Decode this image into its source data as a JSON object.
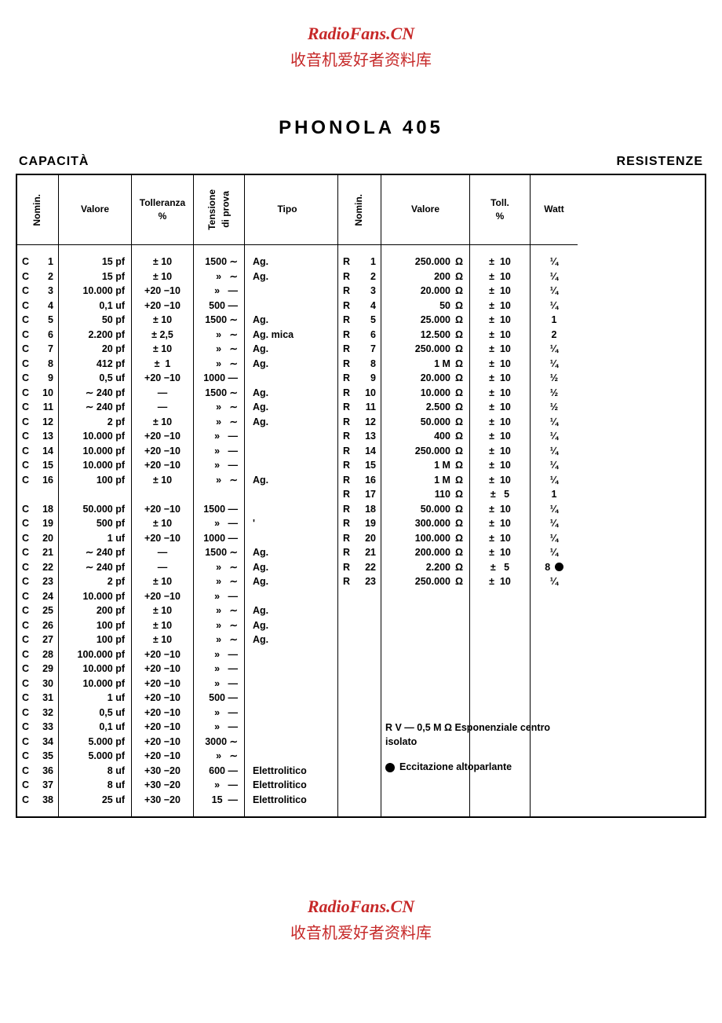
{
  "watermark": {
    "line1": "RadioFans.CN",
    "line2": "收音机爱好者资料库"
  },
  "title": "PHONOLA  405",
  "labels": {
    "left": "CAPACITÀ",
    "right": "RESISTENZE"
  },
  "cap_headers": {
    "nomin": "Nomin.",
    "valore": "Valore",
    "toll": "Tolleranza\n%",
    "tens": "Tensione\ndi prova",
    "tipo": "Tipo"
  },
  "res_headers": {
    "nomin": "Nomin.",
    "valore": "Valore",
    "toll": "Toll.\n%",
    "watt": "Watt"
  },
  "capacitors": [
    {
      "n": "C",
      "i": "1",
      "val": "15 pf",
      "tol": "± 10",
      "tens": "1500 ∼",
      "tipo": "Ag."
    },
    {
      "n": "C",
      "i": "2",
      "val": "15 pf",
      "tol": "± 10",
      "tens": "»   ∼",
      "tipo": "Ag."
    },
    {
      "n": "C",
      "i": "3",
      "val": "10.000 pf",
      "tol": "+20 −10",
      "tens": "»   —",
      "tipo": ""
    },
    {
      "n": "C",
      "i": "4",
      "val": "0,1 uf",
      "tol": "+20 −10",
      "tens": "500 —",
      "tipo": ""
    },
    {
      "n": "C",
      "i": "5",
      "val": "50 pf",
      "tol": "± 10",
      "tens": "1500 ∼",
      "tipo": "Ag."
    },
    {
      "n": "C",
      "i": "6",
      "val": "2.200 pf",
      "tol": "± 2,5",
      "tens": "»   ∼",
      "tipo": "Ag. mica"
    },
    {
      "n": "C",
      "i": "7",
      "val": "20 pf",
      "tol": "± 10",
      "tens": "»   ∼",
      "tipo": "Ag."
    },
    {
      "n": "C",
      "i": "8",
      "val": "412 pf",
      "tol": "±  1",
      "tens": "»   ∼",
      "tipo": "Ag."
    },
    {
      "n": "C",
      "i": "9",
      "val": "0,5 uf",
      "tol": "+20 −10",
      "tens": "1000 —",
      "tipo": ""
    },
    {
      "n": "C",
      "i": "10",
      "val": "∼ 240 pf",
      "tol": "—",
      "tens": "1500 ∼",
      "tipo": "Ag."
    },
    {
      "n": "C",
      "i": "11",
      "val": "∼ 240 pf",
      "tol": "—",
      "tens": "»   ∼",
      "tipo": "Ag."
    },
    {
      "n": "C",
      "i": "12",
      "val": "2 pf",
      "tol": "± 10",
      "tens": "»   ∼",
      "tipo": "Ag."
    },
    {
      "n": "C",
      "i": "13",
      "val": "10.000 pf",
      "tol": "+20 −10",
      "tens": "»   —",
      "tipo": ""
    },
    {
      "n": "C",
      "i": "14",
      "val": "10.000 pf",
      "tol": "+20 −10",
      "tens": "»   —",
      "tipo": ""
    },
    {
      "n": "C",
      "i": "15",
      "val": "10.000 pf",
      "tol": "+20 −10",
      "tens": "»   —",
      "tipo": ""
    },
    {
      "n": "C",
      "i": "16",
      "val": "100 pf",
      "tol": "± 10",
      "tens": "»   ∼",
      "tipo": "Ag."
    },
    {
      "gap": true
    },
    {
      "n": "C",
      "i": "18",
      "val": "50.000 pf",
      "tol": "+20 −10",
      "tens": "1500 —",
      "tipo": ""
    },
    {
      "n": "C",
      "i": "19",
      "val": "500 pf",
      "tol": "± 10",
      "tens": "»   —",
      "tipo": "'"
    },
    {
      "n": "C",
      "i": "20",
      "val": "1 uf",
      "tol": "+20 −10",
      "tens": "1000 —",
      "tipo": ""
    },
    {
      "n": "C",
      "i": "21",
      "val": "∼ 240 pf",
      "tol": "—",
      "tens": "1500 ∼",
      "tipo": "Ag."
    },
    {
      "n": "C",
      "i": "22",
      "val": "∼ 240 pf",
      "tol": "—",
      "tens": "»   ∼",
      "tipo": "Ag."
    },
    {
      "n": "C",
      "i": "23",
      "val": "2 pf",
      "tol": "± 10",
      "tens": "»   ∼",
      "tipo": "Ag."
    },
    {
      "n": "C",
      "i": "24",
      "val": "10.000 pf",
      "tol": "+20 −10",
      "tens": "»   —",
      "tipo": ""
    },
    {
      "n": "C",
      "i": "25",
      "val": "200 pf",
      "tol": "± 10",
      "tens": "»   ∼",
      "tipo": "Ag."
    },
    {
      "n": "C",
      "i": "26",
      "val": "100 pf",
      "tol": "± 10",
      "tens": "»   ∼",
      "tipo": "Ag."
    },
    {
      "n": "C",
      "i": "27",
      "val": "100 pf",
      "tol": "± 10",
      "tens": "»   ∼",
      "tipo": "Ag."
    },
    {
      "n": "C",
      "i": "28",
      "val": "100.000 pf",
      "tol": "+20 −10",
      "tens": "»   —",
      "tipo": ""
    },
    {
      "n": "C",
      "i": "29",
      "val": "10.000 pf",
      "tol": "+20 −10",
      "tens": "»   —",
      "tipo": ""
    },
    {
      "n": "C",
      "i": "30",
      "val": "10.000 pf",
      "tol": "+20 −10",
      "tens": "»   —",
      "tipo": ""
    },
    {
      "n": "C",
      "i": "31",
      "val": "1 uf",
      "tol": "+20 −10",
      "tens": "500 —",
      "tipo": ""
    },
    {
      "n": "C",
      "i": "32",
      "val": "0,5 uf",
      "tol": "+20 −10",
      "tens": "»   —",
      "tipo": ""
    },
    {
      "n": "C",
      "i": "33",
      "val": "0,1 uf",
      "tol": "+20 −10",
      "tens": "»   —",
      "tipo": ""
    },
    {
      "n": "C",
      "i": "34",
      "val": "5.000 pf",
      "tol": "+20 −10",
      "tens": "3000 ∼",
      "tipo": ""
    },
    {
      "n": "C",
      "i": "35",
      "val": "5.000 pf",
      "tol": "+20 −10",
      "tens": "»   ∼",
      "tipo": ""
    },
    {
      "n": "C",
      "i": "36",
      "val": "8 uf",
      "tol": "+30 −20",
      "tens": "600 —",
      "tipo": "Elettrolitico"
    },
    {
      "n": "C",
      "i": "37",
      "val": "8 uf",
      "tol": "+30 −20",
      "tens": "»   —",
      "tipo": "Elettrolitico"
    },
    {
      "n": "C",
      "i": "38",
      "val": "25 uf",
      "tol": "+30 −20",
      "tens": "15  —",
      "tipo": "Elettrolitico"
    }
  ],
  "resistors": [
    {
      "n": "R",
      "i": "1",
      "val": "250.000",
      "u": "Ω",
      "tol": "±  10",
      "w": "¼"
    },
    {
      "n": "R",
      "i": "2",
      "val": "200",
      "u": "Ω",
      "tol": "±  10",
      "w": "¼"
    },
    {
      "n": "R",
      "i": "3",
      "val": "20.000",
      "u": "Ω",
      "tol": "±  10",
      "w": "¼"
    },
    {
      "n": "R",
      "i": "4",
      "val": "50",
      "u": "Ω",
      "tol": "±  10",
      "w": "¼"
    },
    {
      "n": "R",
      "i": "5",
      "val": "25.000",
      "u": "Ω",
      "tol": "±  10",
      "w": "1"
    },
    {
      "n": "R",
      "i": "6",
      "val": "12.500",
      "u": "Ω",
      "tol": "±  10",
      "w": "2"
    },
    {
      "n": "R",
      "i": "7",
      "val": "250.000",
      "u": "Ω",
      "tol": "±  10",
      "w": "¼"
    },
    {
      "n": "R",
      "i": "8",
      "val": "1 M",
      "u": "Ω",
      "tol": "±  10",
      "w": "¼"
    },
    {
      "n": "R",
      "i": "9",
      "val": "20.000",
      "u": "Ω",
      "tol": "±  10",
      "w": "½"
    },
    {
      "n": "R",
      "i": "10",
      "val": "10.000",
      "u": "Ω",
      "tol": "±  10",
      "w": "½"
    },
    {
      "n": "R",
      "i": "11",
      "val": "2.500",
      "u": "Ω",
      "tol": "±  10",
      "w": "½"
    },
    {
      "n": "R",
      "i": "12",
      "val": "50.000",
      "u": "Ω",
      "tol": "±  10",
      "w": "¼"
    },
    {
      "n": "R",
      "i": "13",
      "val": "400",
      "u": "Ω",
      "tol": "±  10",
      "w": "¼"
    },
    {
      "n": "R",
      "i": "14",
      "val": "250.000",
      "u": "Ω",
      "tol": "±  10",
      "w": "¼"
    },
    {
      "n": "R",
      "i": "15",
      "val": "1 M",
      "u": "Ω",
      "tol": "±  10",
      "w": "¼"
    },
    {
      "n": "R",
      "i": "16",
      "val": "1 M",
      "u": "Ω",
      "tol": "±  10",
      "w": "¼"
    },
    {
      "n": "R",
      "i": "17",
      "val": "110",
      "u": "Ω",
      "tol": "±   5",
      "w": "1"
    },
    {
      "n": "R",
      "i": "18",
      "val": "50.000",
      "u": "Ω",
      "tol": "±  10",
      "w": "¼"
    },
    {
      "n": "R",
      "i": "19",
      "val": "300.000",
      "u": "Ω",
      "tol": "±  10",
      "w": "¼"
    },
    {
      "n": "R",
      "i": "20",
      "val": "100.000",
      "u": "Ω",
      "tol": "±  10",
      "w": "¼"
    },
    {
      "n": "R",
      "i": "21",
      "val": "200.000",
      "u": "Ω",
      "tol": "±  10",
      "w": "¼"
    },
    {
      "n": "R",
      "i": "22",
      "val": "2.200",
      "u": "Ω",
      "tol": "±   5",
      "w": "8 ●"
    },
    {
      "n": "R",
      "i": "23",
      "val": "250.000",
      "u": "Ω",
      "tol": "±  10",
      "w": "¼"
    }
  ],
  "res_notes": {
    "rv": "R V  —  0,5 M Ω  Esponenziale centro isolato",
    "ecc": "Eccitazione altoparlante"
  },
  "colors": {
    "red": "#c62828",
    "black": "#000000",
    "bg": "#ffffff"
  }
}
